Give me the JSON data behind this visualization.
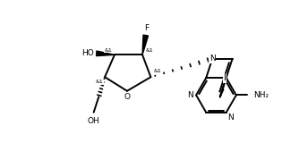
{
  "bg_color": "#ffffff",
  "line_color": "#000000",
  "lw": 1.4,
  "fs": 6.5,
  "figsize": [
    3.15,
    1.88
  ],
  "dpi": 100,
  "xlim": [
    0,
    10
  ],
  "ylim": [
    0,
    6
  ]
}
